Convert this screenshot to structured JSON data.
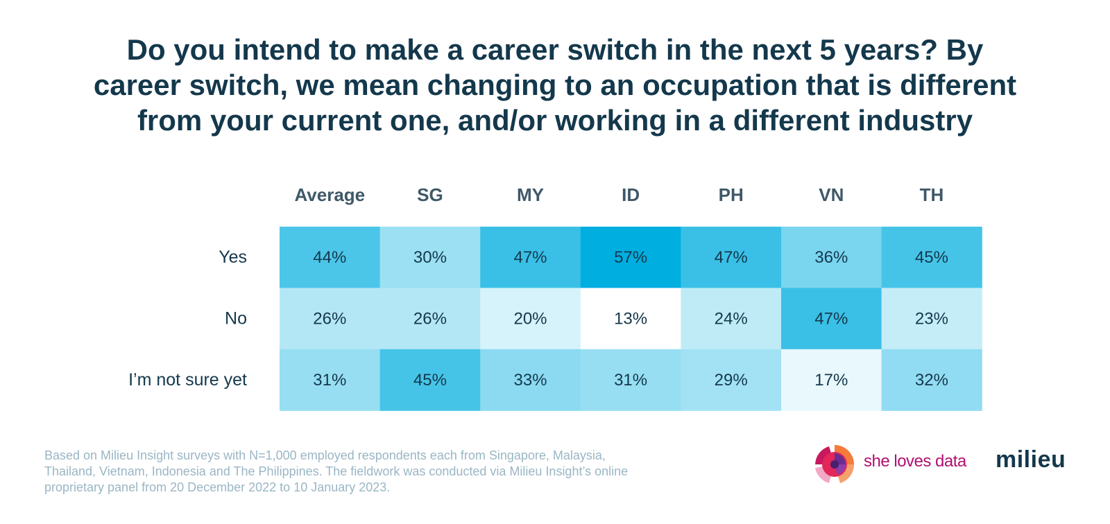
{
  "title_lines": [
    "Do you intend to make a career switch in the next 5 years? By",
    "career switch, we mean changing to an occupation that is different",
    "from your current one, and/or working in a different industry"
  ],
  "chart_data": {
    "type": "heatmap",
    "columns": [
      "Average",
      "SG",
      "MY",
      "ID",
      "PH",
      "VN",
      "TH"
    ],
    "rows": [
      "Yes",
      "No",
      "I’m not sure yet"
    ],
    "values": [
      [
        44,
        30,
        47,
        57,
        47,
        36,
        45
      ],
      [
        26,
        26,
        20,
        13,
        24,
        47,
        23
      ],
      [
        31,
        45,
        33,
        31,
        29,
        17,
        32
      ]
    ],
    "value_suffix": "%",
    "color_scale": {
      "low": "#ffffff",
      "high": "#00aee0",
      "min": 13,
      "max": 57
    }
  },
  "footnote_lines": [
    "Based on Milieu Insight surveys with N=1,000 employed respondents each from Singapore, Malaysia,",
    "Thailand, Vietnam, Indonesia and The Philippines. The fieldwork was conducted via Milieu Insight’s online",
    "proprietary panel from 20 December 2022 to 10 January 2023."
  ],
  "logos": {
    "she_loves_data": "she loves data",
    "milieu": "milieu"
  },
  "icons": {
    "she_loves_data_mark": "radial-chart-logo-icon"
  }
}
